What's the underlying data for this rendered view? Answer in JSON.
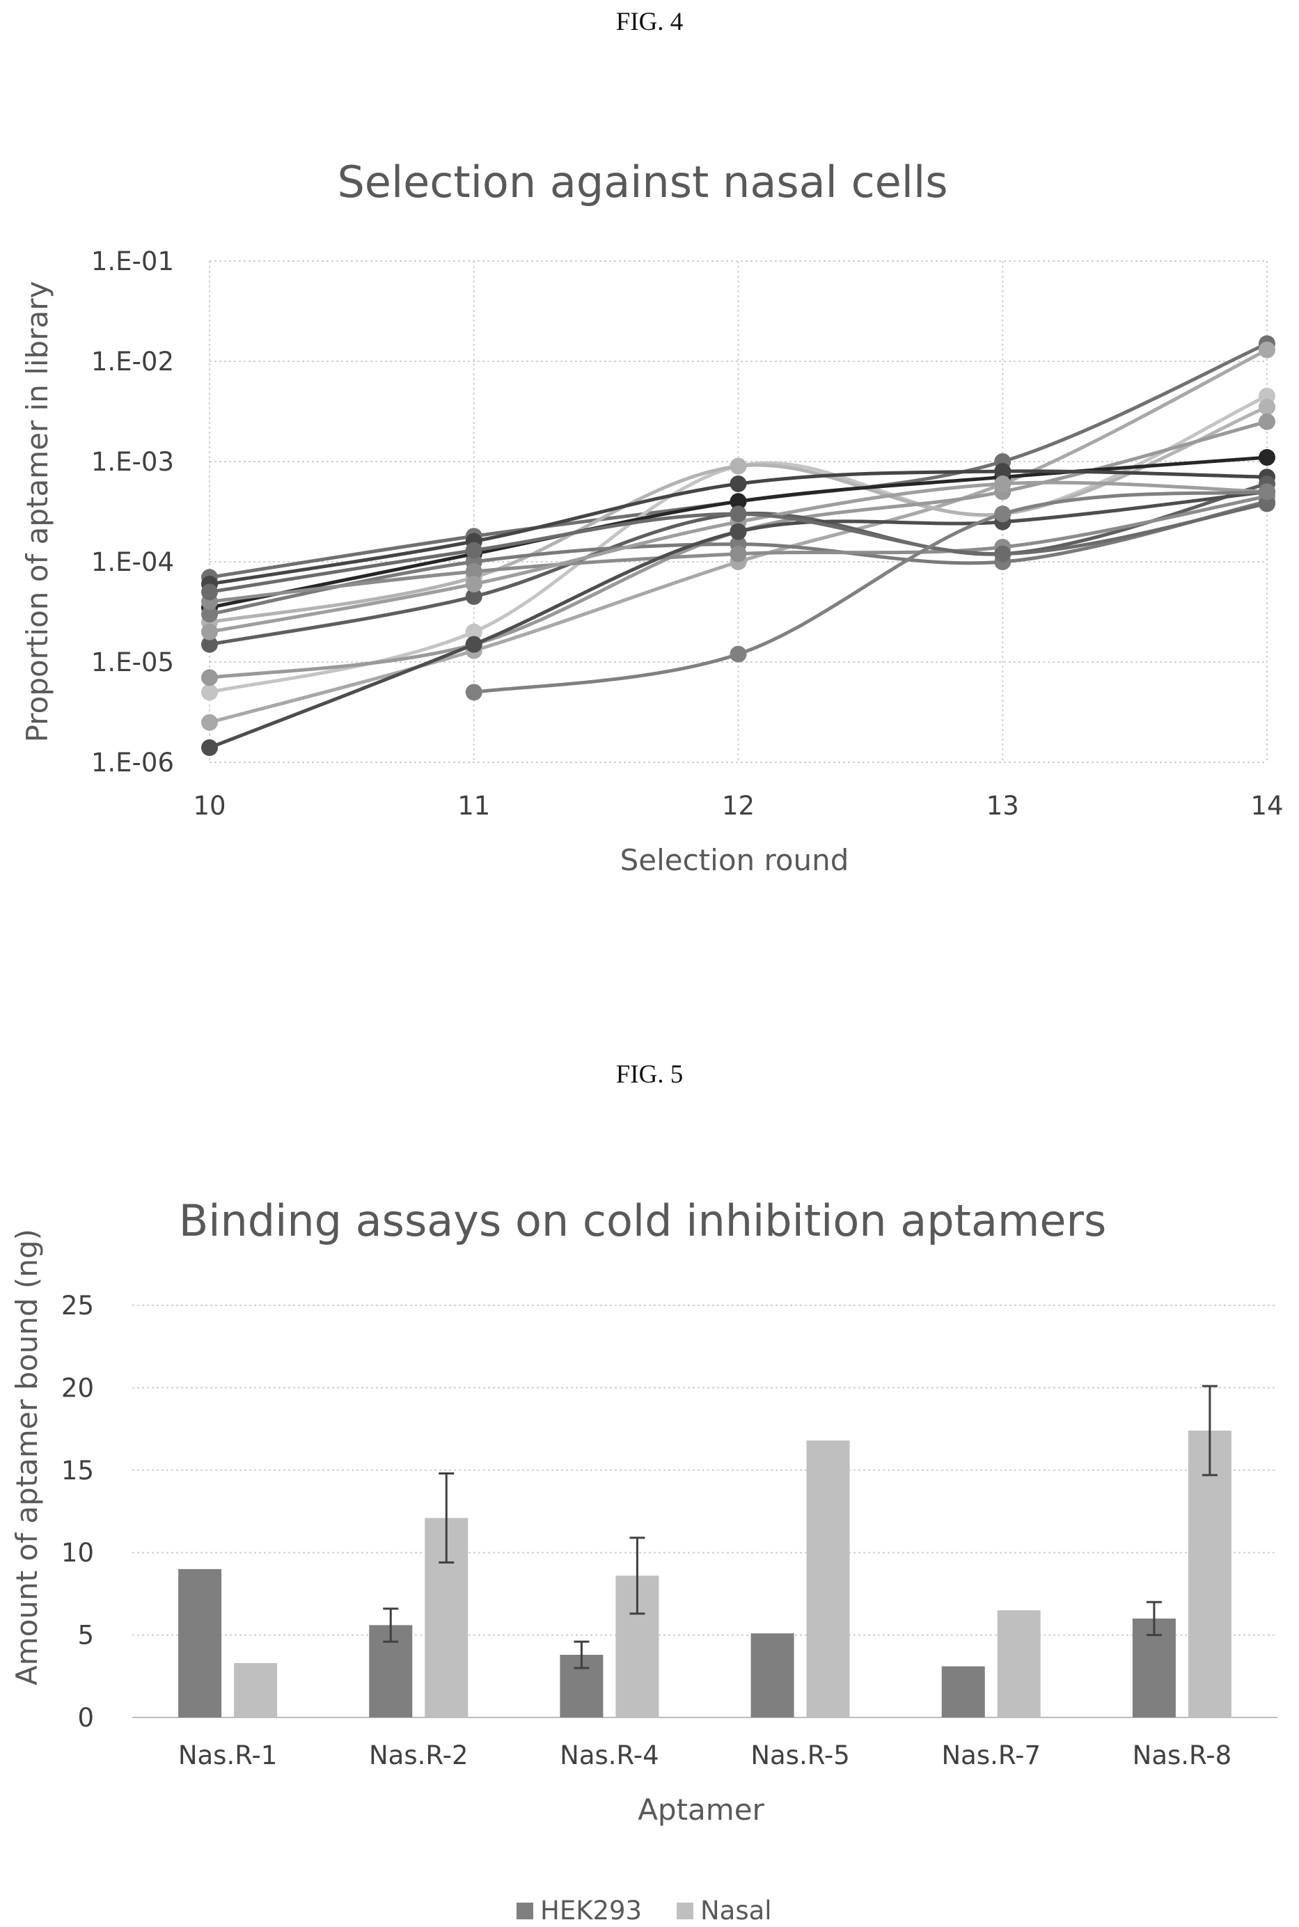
{
  "fig4_label": "FIG. 4",
  "fig5_label": "FIG. 5",
  "chart_data": [
    {
      "type": "line",
      "title": "Selection against nasal cells",
      "xlabel": "Selection round",
      "ylabel": "Proportion of aptamer in library",
      "yscale": "log",
      "ylim": [
        1e-06,
        0.1
      ],
      "xlim": [
        10,
        14
      ],
      "x": [
        10,
        11,
        12,
        13,
        14
      ],
      "xticks": [
        "10",
        "11",
        "12",
        "13",
        "14"
      ],
      "yticks": [
        "1.E-06",
        "1.E-05",
        "1.E-04",
        "1.E-03",
        "1.E-02",
        "1.E-01"
      ],
      "grid": "dotted",
      "series": [
        {
          "color": "#707070",
          "values": [
            7e-05,
            0.00018,
            0.0004,
            0.001,
            0.015
          ]
        },
        {
          "color": "#a8a8a8",
          "values": [
            2.5e-06,
            1.3e-05,
            0.0001,
            0.0006,
            0.013
          ]
        },
        {
          "color": "#c4c4c4",
          "values": [
            5e-06,
            2e-05,
            0.0009,
            0.0003,
            0.0045
          ]
        },
        {
          "color": "#b3b3b3",
          "values": [
            2.5e-05,
            7e-05,
            0.0009,
            0.0003,
            0.0035
          ]
        },
        {
          "color": "#999999",
          "values": [
            7e-06,
            1.5e-05,
            0.0002,
            0.0005,
            0.0025
          ]
        },
        {
          "color": "#262626",
          "values": [
            3.5e-05,
            0.00012,
            0.0004,
            0.0007,
            0.0011
          ]
        },
        {
          "color": "#454545",
          "values": [
            6e-05,
            0.00016,
            0.0006,
            0.0008,
            0.0007
          ]
        },
        {
          "color": "#5e5e5e",
          "values": [
            1.5e-05,
            4.5e-05,
            0.0003,
            0.00012,
            0.0006
          ]
        },
        {
          "color": "#7a7a7a",
          "values": [
            3e-05,
            0.0001,
            0.00015,
            0.0001,
            0.0004
          ]
        },
        {
          "color": "#8c8c8c",
          "values": [
            4e-05,
            8e-05,
            0.00012,
            0.00014,
            0.00045
          ]
        },
        {
          "color": "#9e9e9e",
          "values": [
            2e-05,
            6e-05,
            0.00025,
            0.0006,
            0.0005
          ]
        },
        {
          "color": "#4d4d4d",
          "values": [
            1.4e-06,
            1.5e-05,
            0.0002,
            0.00025,
            0.0005
          ]
        },
        {
          "color": "#6b6b6b",
          "values": [
            5e-05,
            0.00013,
            0.0003,
            0.00012,
            0.00038
          ]
        },
        {
          "color": "#808080",
          "values": [
            null,
            5e-06,
            1.2e-05,
            0.0003,
            0.0005
          ]
        }
      ]
    },
    {
      "type": "bar",
      "title": "Binding assays on cold inhibition aptamers",
      "xlabel": "Aptamer",
      "ylabel": "Amount of aptamer bound (ng)",
      "ylim": [
        0,
        25
      ],
      "yticks": [
        "0",
        "5",
        "10",
        "15",
        "20",
        "25"
      ],
      "categories": [
        "Nas.R-1",
        "Nas.R-2",
        "Nas.R-4",
        "Nas.R-5",
        "Nas.R-7",
        "Nas.R-8"
      ],
      "grid": "dotted",
      "legend_position": "bottom",
      "series": [
        {
          "name": "HEK293",
          "color": "#7f7f7f",
          "values": [
            9,
            5.6,
            3.8,
            5.1,
            3.1,
            6.0
          ],
          "errors": [
            null,
            1.0,
            0.8,
            null,
            null,
            1.0
          ]
        },
        {
          "name": "Nasal",
          "color": "#bfbfbf",
          "values": [
            3.3,
            12.1,
            8.6,
            16.8,
            6.5,
            17.4
          ],
          "errors": [
            null,
            2.7,
            2.3,
            null,
            null,
            2.7
          ]
        }
      ]
    }
  ]
}
